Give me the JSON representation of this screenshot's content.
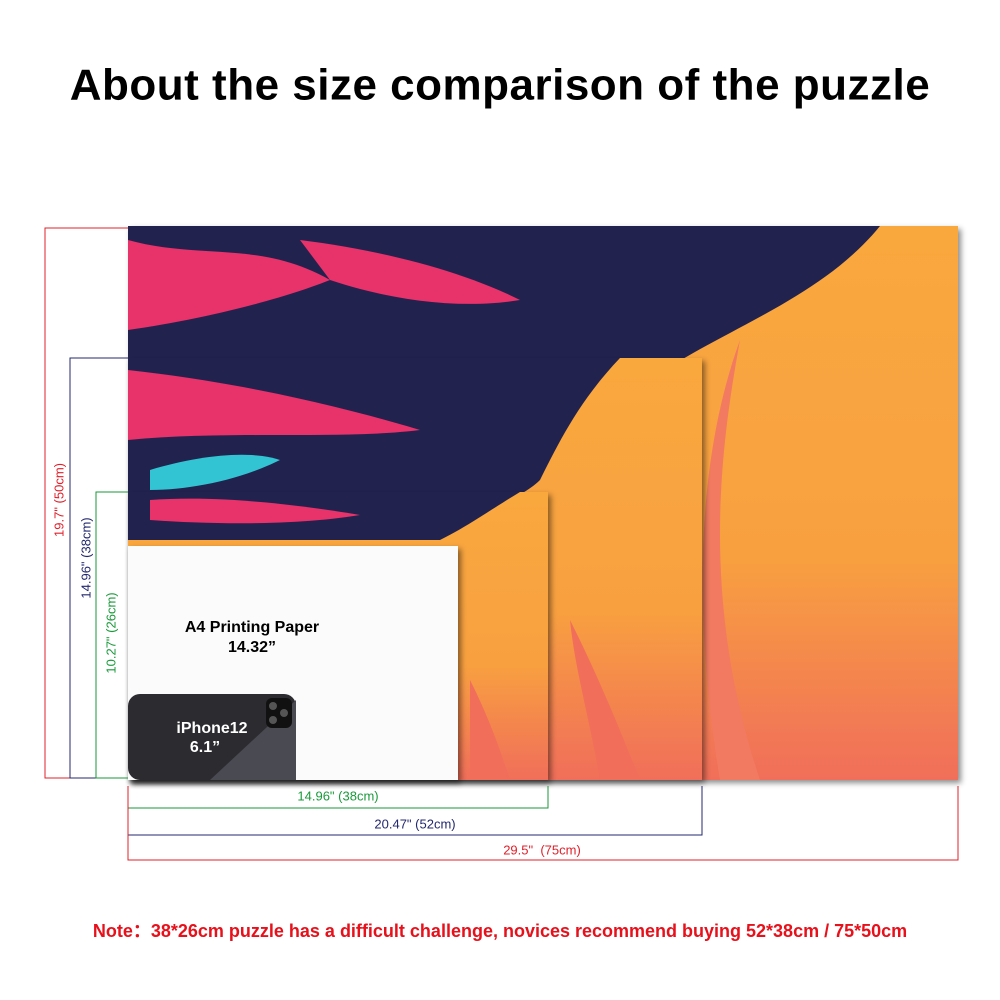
{
  "header": {
    "title": "About the size comparison of the puzzle"
  },
  "heights": [
    "19.7\" (50cm)",
    "14.96\" (38cm)",
    "10.27\" (26cm)"
  ],
  "widths": [
    "14.96\" (38cm)",
    "20.47\" (52cm)",
    "29.5\"  (75cm)"
  ],
  "a4": {
    "label": "A4 Printing Paper",
    "size": "14.32”"
  },
  "phone": {
    "label": "iPhone12",
    "size": "6.1”"
  },
  "note": "Note：38*26cm puzzle has a difficult challenge, novices recommend buying 52*38cm / 75*50cm"
}
